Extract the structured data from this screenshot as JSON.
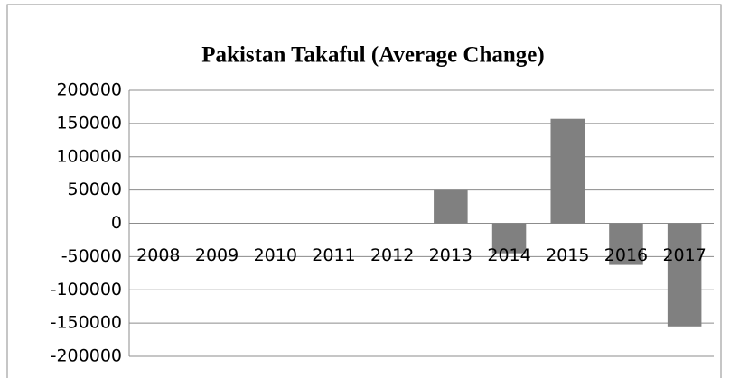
{
  "chart_data": {
    "type": "bar",
    "title": "Pakistan Takaful (Average Change)",
    "categories": [
      "2008",
      "2009",
      "2010",
      "2011",
      "2012",
      "2013",
      "2014",
      "2015",
      "2016",
      "2017"
    ],
    "values": [
      0,
      0,
      0,
      0,
      0,
      50000,
      -45000,
      157000,
      -62500,
      -155000
    ],
    "color": "#808080",
    "ylim": [
      -200000,
      200000
    ],
    "yticks": [
      -200000,
      -150000,
      -100000,
      -50000,
      0,
      50000,
      100000,
      150000,
      200000
    ],
    "grid": true
  }
}
